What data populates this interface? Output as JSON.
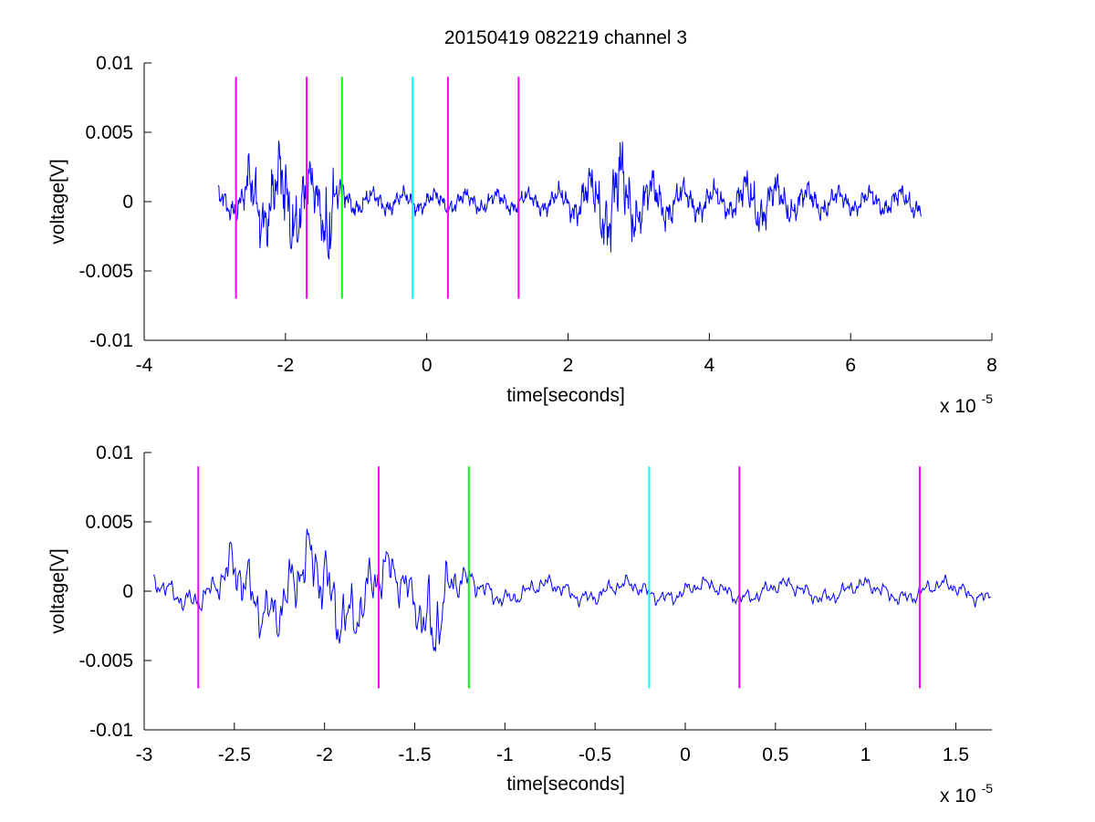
{
  "figure_title": "20150419 082219 channel 3",
  "chart_data": [
    {
      "type": "line",
      "title": "20150419 082219 channel 3",
      "xlabel": "time[seconds]",
      "ylabel": "voltage[V]",
      "x_multiplier_base": "x 10",
      "x_multiplier_exp": "-5",
      "xlim": [
        -4,
        8
      ],
      "ylim": [
        -0.01,
        0.01
      ],
      "xticks": [
        -4,
        -2,
        0,
        2,
        4,
        6,
        8
      ],
      "xtick_labels": [
        "-4",
        "-2",
        "0",
        "2",
        "4",
        "6",
        "8"
      ],
      "yticks": [
        -0.01,
        -0.005,
        0,
        0.005,
        0.01
      ],
      "ytick_labels": [
        "-0.01",
        "-0.005",
        "0",
        "0.005",
        "0.01"
      ],
      "grid": false,
      "series": [
        {
          "color": "#0000ff",
          "x_range": [
            -2.95,
            7.0
          ],
          "samples": 1200,
          "envelope": [
            [
              -2.95,
              0.0012
            ],
            [
              -2.6,
              0.0015
            ],
            [
              -2.5,
              0.0035
            ],
            [
              -2.3,
              0.003
            ],
            [
              -2.1,
              0.004
            ],
            [
              -2.0,
              0.0045
            ],
            [
              -1.8,
              0.0035
            ],
            [
              -1.7,
              0.003
            ],
            [
              -1.5,
              0.0025
            ],
            [
              -1.4,
              0.006
            ],
            [
              -1.3,
              0.0025
            ],
            [
              -1.2,
              0.0015
            ],
            [
              -1.0,
              0.001
            ],
            [
              0.0,
              0.0009
            ],
            [
              1.5,
              0.0009
            ],
            [
              2.0,
              0.0012
            ],
            [
              2.4,
              0.0028
            ],
            [
              2.7,
              0.0045
            ],
            [
              3.0,
              0.0025
            ],
            [
              3.6,
              0.0015
            ],
            [
              4.3,
              0.0012
            ],
            [
              4.6,
              0.0025
            ],
            [
              5.2,
              0.0015
            ],
            [
              6.0,
              0.001
            ],
            [
              7.0,
              0.0012
            ]
          ]
        }
      ],
      "markers": [
        {
          "x": -2.7,
          "color": "#ff00ff",
          "ymin": -0.007,
          "ymax": 0.009
        },
        {
          "x": -1.7,
          "color": "#ff00ff",
          "ymin": -0.007,
          "ymax": 0.009
        },
        {
          "x": -1.2,
          "color": "#00ff00",
          "ymin": -0.007,
          "ymax": 0.009
        },
        {
          "x": -0.2,
          "color": "#00ffff",
          "ymin": -0.007,
          "ymax": 0.009
        },
        {
          "x": 0.3,
          "color": "#ff00ff",
          "ymin": -0.007,
          "ymax": 0.009
        },
        {
          "x": 1.3,
          "color": "#ff00ff",
          "ymin": -0.007,
          "ymax": 0.009
        }
      ]
    },
    {
      "type": "line",
      "title": "",
      "xlabel": "time[seconds]",
      "ylabel": "voltage[V]",
      "x_multiplier_base": "x 10",
      "x_multiplier_exp": "-5",
      "xlim": [
        -3.0,
        1.7
      ],
      "ylim": [
        -0.01,
        0.01
      ],
      "xticks": [
        -3,
        -2.5,
        -2,
        -1.5,
        -1,
        -0.5,
        0,
        0.5,
        1,
        1.5
      ],
      "xtick_labels": [
        "-3",
        "-2.5",
        "-2",
        "-1.5",
        "-1",
        "-0.5",
        "0",
        "0.5",
        "1",
        "1.5"
      ],
      "yticks": [
        -0.01,
        -0.005,
        0,
        0.005,
        0.01
      ],
      "ytick_labels": [
        "-0.01",
        "-0.005",
        "0",
        "0.005",
        "0.01"
      ],
      "grid": false,
      "series": [
        {
          "color": "#0000ff",
          "x_range": [
            -2.95,
            1.7
          ],
          "samples": 900,
          "envelope": [
            [
              -2.95,
              0.0012
            ],
            [
              -2.6,
              0.0015
            ],
            [
              -2.5,
              0.0035
            ],
            [
              -2.3,
              0.003
            ],
            [
              -2.1,
              0.004
            ],
            [
              -2.0,
              0.0045
            ],
            [
              -1.8,
              0.0035
            ],
            [
              -1.7,
              0.003
            ],
            [
              -1.5,
              0.0025
            ],
            [
              -1.4,
              0.006
            ],
            [
              -1.3,
              0.0025
            ],
            [
              -1.2,
              0.0015
            ],
            [
              -1.0,
              0.001
            ],
            [
              0.0,
              0.0009
            ],
            [
              1.7,
              0.0009
            ]
          ]
        }
      ],
      "markers": [
        {
          "x": -2.7,
          "color": "#ff00ff",
          "ymin": -0.007,
          "ymax": 0.009
        },
        {
          "x": -1.7,
          "color": "#ff00ff",
          "ymin": -0.007,
          "ymax": 0.009
        },
        {
          "x": -1.2,
          "color": "#00ff00",
          "ymin": -0.007,
          "ymax": 0.009
        },
        {
          "x": -0.2,
          "color": "#00ffff",
          "ymin": -0.007,
          "ymax": 0.009
        },
        {
          "x": 0.3,
          "color": "#ff00ff",
          "ymin": -0.007,
          "ymax": 0.009
        },
        {
          "x": 1.3,
          "color": "#ff00ff",
          "ymin": -0.007,
          "ymax": 0.009
        }
      ]
    }
  ]
}
